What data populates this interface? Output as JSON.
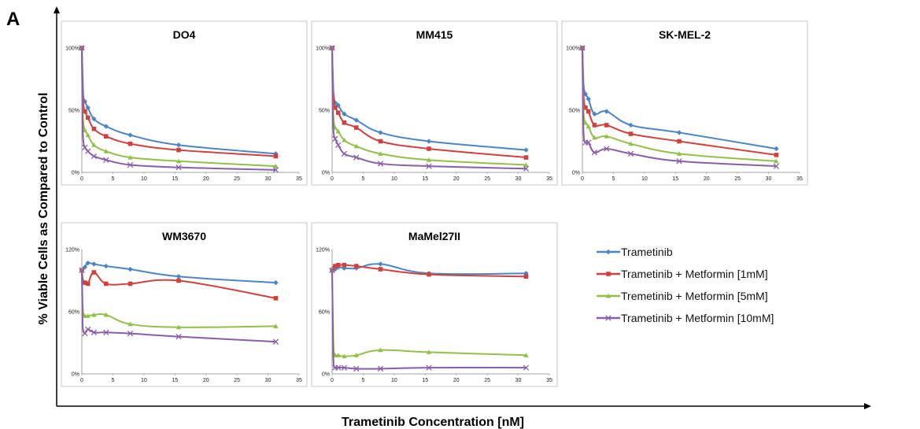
{
  "figure": {
    "panel_letter": "A",
    "y_axis_label": "% Viable Cells as Compared to Control",
    "x_axis_label": "Trametinib Concentration [nM]"
  },
  "colors": {
    "Trametinib": "#4a86c5",
    "Trametinib + Metformin [1mM]": "#d0413d",
    "Tremetinib + Metformin [5mM]": "#93c047",
    "Trametinib + Metformin [10mM]": "#8a5ea8"
  },
  "legend": [
    {
      "label": "Trametinib",
      "color": "#4a86c5",
      "marker": "diamond"
    },
    {
      "label": "Trametinib + Metformin [1mM]",
      "color": "#d0413d",
      "marker": "square"
    },
    {
      "label": "Tremetinib + Metformin [5mM]",
      "color": "#93c047",
      "marker": "triangle"
    },
    {
      "label": "Trametinib + Metformin [10mM]",
      "color": "#8a5ea8",
      "marker": "x"
    }
  ],
  "chart_data": [
    {
      "type": "line",
      "title": "DO4",
      "xlim": [
        0,
        35
      ],
      "ylim": [
        0,
        100
      ],
      "xticks": [
        "0",
        "5",
        "10",
        "15",
        "20",
        "25",
        "30",
        "35"
      ],
      "yticks": [
        {
          "v": 0,
          "t": "0%"
        },
        {
          "v": 50,
          "t": "50%"
        },
        {
          "v": 100,
          "t": "100%"
        }
      ],
      "x": [
        0,
        0.12,
        0.24,
        0.49,
        0.98,
        1.95,
        3.9,
        7.8,
        15.6,
        31.25
      ],
      "series": [
        {
          "name": "Trametinib",
          "values": [
            100,
            80,
            62,
            57,
            52,
            43,
            37,
            30,
            22,
            15
          ]
        },
        {
          "name": "Trametinib + Metformin [1mM]",
          "values": [
            100,
            70,
            55,
            49,
            44,
            35,
            29,
            23,
            18,
            13
          ]
        },
        {
          "name": "Tremetinib + Metformin [5mM]",
          "values": [
            100,
            55,
            40,
            34,
            30,
            22,
            17,
            12,
            9,
            5
          ]
        },
        {
          "name": "Trametinib + Metformin [10mM]",
          "values": [
            100,
            42,
            25,
            20,
            17,
            13,
            10,
            6,
            4,
            2
          ]
        }
      ]
    },
    {
      "type": "line",
      "title": "MM415",
      "xlim": [
        0,
        35
      ],
      "ylim": [
        0,
        100
      ],
      "xticks": [
        "0",
        "5",
        "10",
        "15",
        "20",
        "25",
        "30",
        "35"
      ],
      "yticks": [
        {
          "v": 0,
          "t": "0%"
        },
        {
          "v": 50,
          "t": "50%"
        },
        {
          "v": 100,
          "t": "100%"
        }
      ],
      "x": [
        0,
        0.12,
        0.24,
        0.49,
        0.98,
        1.95,
        3.9,
        7.8,
        15.6,
        31.25
      ],
      "series": [
        {
          "name": "Trametinib",
          "values": [
            100,
            78,
            63,
            56,
            54,
            47,
            42,
            32,
            25,
            18
          ]
        },
        {
          "name": "Trametinib + Metformin [1mM]",
          "values": [
            100,
            72,
            60,
            52,
            48,
            40,
            36,
            25,
            19,
            12
          ]
        },
        {
          "name": "Tremetinib + Metformin [5mM]",
          "values": [
            100,
            58,
            42,
            36,
            33,
            26,
            21,
            15,
            10,
            6
          ]
        },
        {
          "name": "Trametinib + Metformin [10mM]",
          "values": [
            100,
            48,
            32,
            27,
            22,
            15,
            12,
            7,
            5,
            3
          ]
        }
      ]
    },
    {
      "type": "line",
      "title": "SK-MEL-2",
      "xlim": [
        0,
        35
      ],
      "ylim": [
        0,
        100
      ],
      "xticks": [
        "0",
        "5",
        "10",
        "15",
        "20",
        "25",
        "30",
        "35"
      ],
      "yticks": [
        {
          "v": 0,
          "t": "0%"
        },
        {
          "v": 50,
          "t": "50%"
        },
        {
          "v": 100,
          "t": "100%"
        }
      ],
      "x": [
        0,
        0.12,
        0.24,
        0.49,
        0.98,
        1.95,
        3.9,
        7.8,
        15.6,
        31.25
      ],
      "series": [
        {
          "name": "Trametinib",
          "values": [
            100,
            80,
            68,
            63,
            59,
            47,
            49,
            38,
            32,
            19
          ]
        },
        {
          "name": "Trametinib + Metformin [1mM]",
          "values": [
            100,
            72,
            58,
            52,
            49,
            38,
            38,
            31,
            25,
            14
          ]
        },
        {
          "name": "Tremetinib + Metformin [5mM]",
          "values": [
            100,
            60,
            45,
            40,
            37,
            28,
            29,
            23,
            15,
            9
          ]
        },
        {
          "name": "Trametinib + Metformin [10mM]",
          "values": [
            100,
            45,
            28,
            24,
            24,
            16,
            19,
            15,
            9,
            5
          ]
        }
      ]
    },
    {
      "type": "line",
      "title": "WM3670",
      "xlim": [
        0,
        35
      ],
      "ylim": [
        0,
        120
      ],
      "xticks": [
        "0",
        "5",
        "10",
        "15",
        "20",
        "25",
        "30",
        "35"
      ],
      "yticks": [
        {
          "v": 0,
          "t": "0%"
        },
        {
          "v": 60,
          "t": "60%"
        },
        {
          "v": 120,
          "t": "120%"
        }
      ],
      "x": [
        0,
        0.12,
        0.24,
        0.49,
        0.98,
        1.95,
        3.9,
        7.8,
        15.6,
        31.25
      ],
      "series": [
        {
          "name": "Trametinib",
          "values": [
            100,
            101,
            102,
            103,
            107,
            106,
            104,
            101,
            94,
            88
          ]
        },
        {
          "name": "Trametinib + Metformin [1mM]",
          "values": [
            100,
            93,
            90,
            88,
            87,
            98,
            87,
            87,
            90,
            73
          ]
        },
        {
          "name": "Tremetinib + Metformin [5mM]",
          "values": [
            100,
            70,
            58,
            56,
            56,
            57,
            57,
            48,
            45,
            46
          ]
        },
        {
          "name": "Trametinib + Metformin [10mM]",
          "values": [
            100,
            50,
            42,
            39,
            43,
            40,
            40,
            39,
            36,
            31
          ]
        }
      ]
    },
    {
      "type": "line",
      "title": "MaMel27II",
      "xlim": [
        0,
        35
      ],
      "ylim": [
        0,
        120
      ],
      "xticks": [
        "0",
        "5",
        "10",
        "15",
        "20",
        "25",
        "30",
        "35"
      ],
      "yticks": [
        {
          "v": 0,
          "t": "0%"
        },
        {
          "v": 60,
          "t": "60%"
        },
        {
          "v": 120,
          "t": "120%"
        }
      ],
      "x": [
        0,
        0.12,
        0.24,
        0.49,
        0.98,
        1.95,
        3.9,
        7.8,
        15.6,
        31.25
      ],
      "series": [
        {
          "name": "Trametinib",
          "values": [
            100,
            101,
            102,
            101,
            103,
            102,
            102,
            106,
            97,
            97
          ]
        },
        {
          "name": "Trametinib + Metformin [1mM]",
          "values": [
            100,
            102,
            104,
            104,
            105,
            105,
            104,
            101,
            96,
            94
          ]
        },
        {
          "name": "Tremetinib + Metformin [5mM]",
          "values": [
            100,
            60,
            25,
            18,
            18,
            17,
            18,
            23,
            21,
            18
          ]
        },
        {
          "name": "Trametinib + Metformin [10mM]",
          "values": [
            100,
            40,
            10,
            6,
            6,
            6,
            5,
            5,
            6,
            6
          ]
        }
      ]
    }
  ]
}
